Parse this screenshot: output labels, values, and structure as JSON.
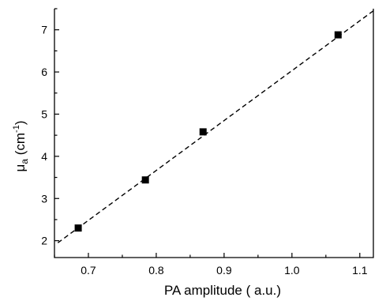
{
  "chart_data": {
    "type": "scatter",
    "xlabel": "PA amplitude ( a.u.)",
    "ylabel": {
      "base": "μ",
      "sub": "a",
      "unit_open": " (cm",
      "unit_sup": "-1",
      "unit_close": ")"
    },
    "xlim": [
      0.65,
      1.12
    ],
    "ylim": [
      1.6,
      7.5
    ],
    "x_ticks": [
      0.7,
      0.8,
      0.9,
      1.0,
      1.1
    ],
    "x_tick_labels": [
      "0.7",
      "0.8",
      "0.9",
      "1.0",
      "1.1"
    ],
    "y_ticks": [
      2,
      3,
      4,
      5,
      6,
      7
    ],
    "y_tick_labels": [
      "2",
      "3",
      "4",
      "5",
      "6",
      "7"
    ],
    "grid": false,
    "legend": "none",
    "points": [
      {
        "x": 0.685,
        "y": 2.3
      },
      {
        "x": 0.784,
        "y": 3.44
      },
      {
        "x": 0.869,
        "y": 4.58
      },
      {
        "x": 1.068,
        "y": 6.88
      }
    ],
    "fit_line": {
      "style": "dashed",
      "x": [
        0.655,
        1.12
      ],
      "y": [
        1.95,
        7.45
      ]
    },
    "colors": {
      "marker": "#000000",
      "line": "#000000"
    }
  }
}
